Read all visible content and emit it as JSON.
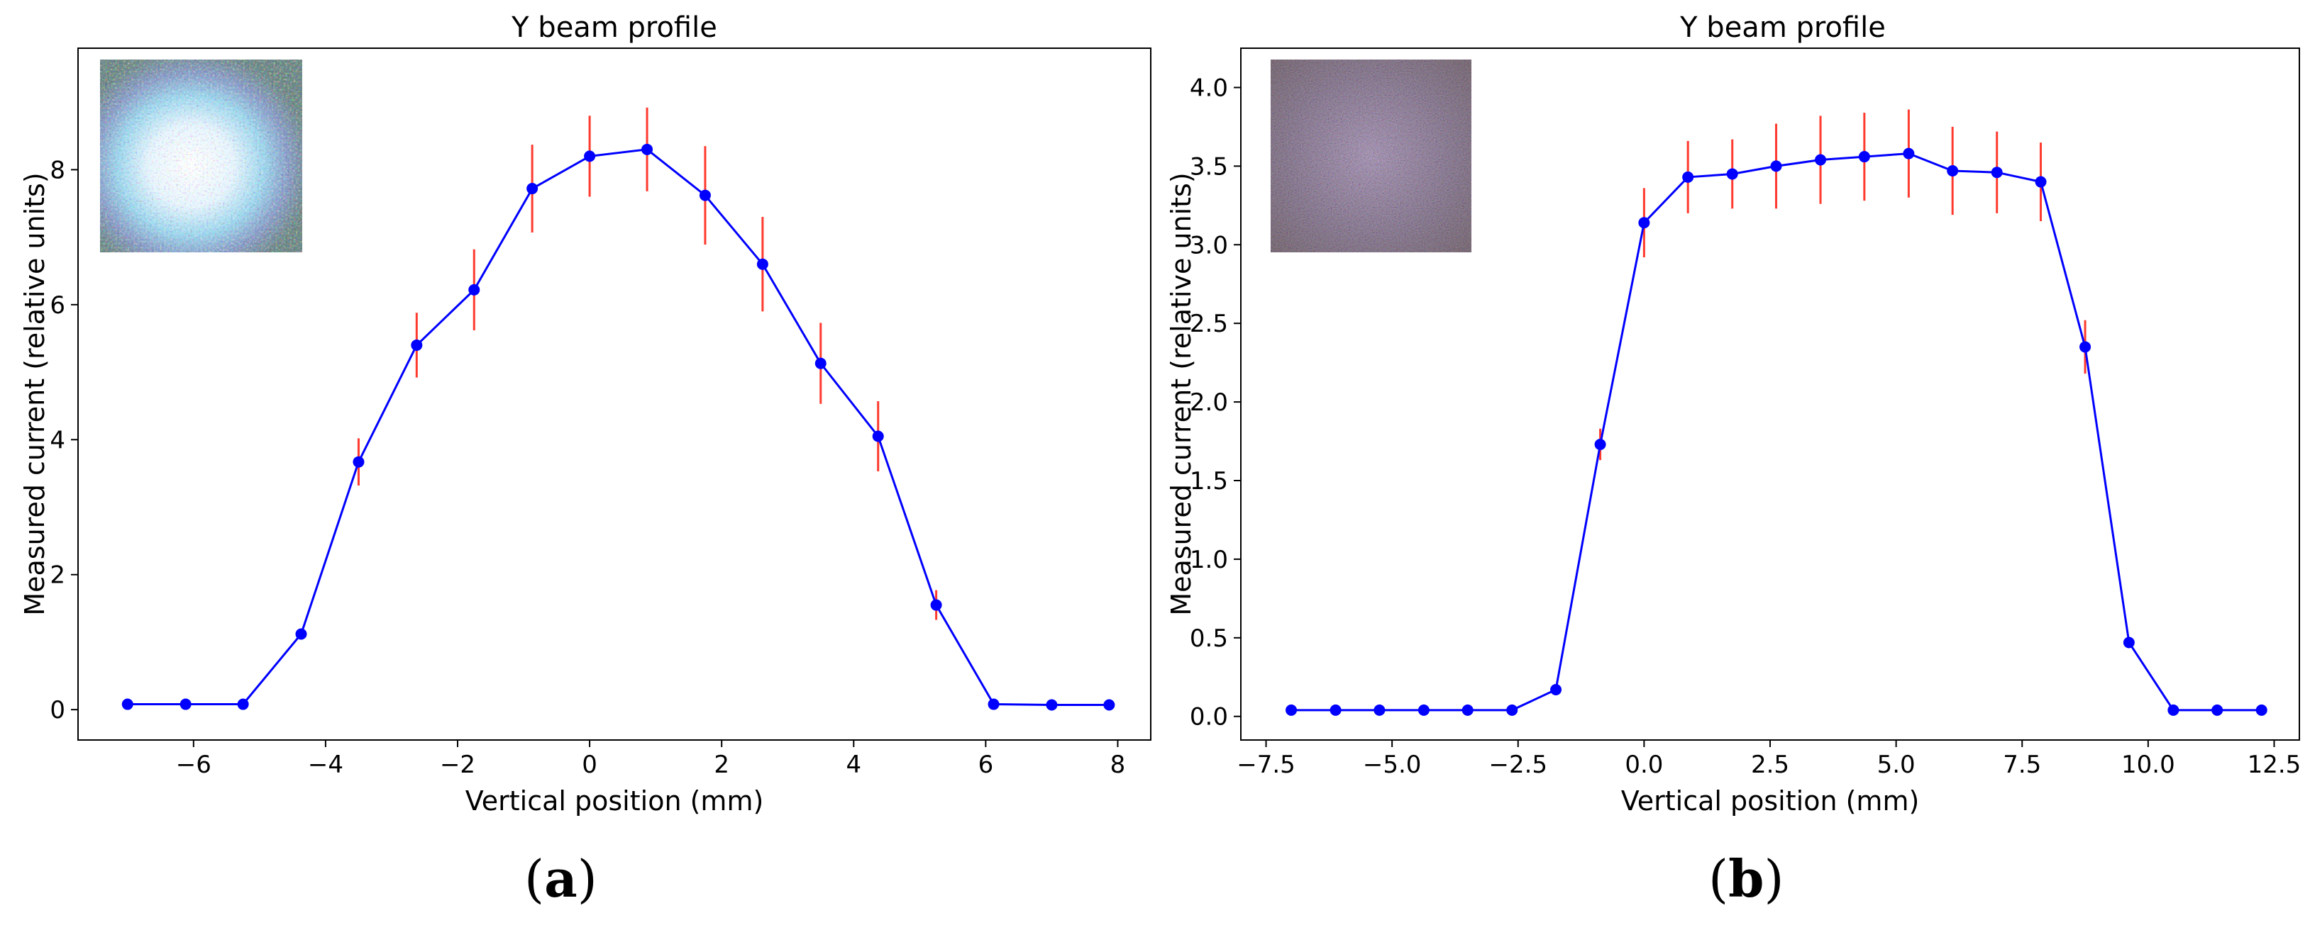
{
  "chart_data": [
    {
      "type": "line",
      "panel": "a",
      "caption": "a",
      "title": "Y beam profile",
      "xlabel": "Vertical position (mm)",
      "ylabel": "Measured current (relative units)",
      "xlim": [
        -7.75,
        8.5
      ],
      "ylim": [
        -0.45,
        9.8
      ],
      "xticks": [
        -6,
        -4,
        -2,
        0,
        2,
        4,
        6,
        8
      ],
      "xtick_labels": [
        "−6",
        "−4",
        "−2",
        "0",
        "2",
        "4",
        "6",
        "8"
      ],
      "yticks": [
        0,
        2,
        4,
        6,
        8
      ],
      "ytick_labels": [
        "0",
        "2",
        "4",
        "6",
        "8"
      ],
      "inset": "beam spot image (bright, centered)",
      "series": [
        {
          "name": "Y beam profile",
          "color": "#0000ff",
          "error_color": "#ff3a2e",
          "x": [
            -7.0,
            -6.12,
            -5.25,
            -4.37,
            -3.5,
            -2.62,
            -1.75,
            -0.87,
            0.0,
            0.87,
            1.75,
            2.62,
            3.5,
            4.37,
            5.25,
            6.12,
            7.0,
            7.87
          ],
          "y": [
            0.08,
            0.08,
            0.08,
            1.12,
            3.67,
            5.4,
            6.22,
            7.72,
            8.2,
            8.3,
            7.62,
            6.6,
            5.13,
            4.05,
            1.55,
            0.08,
            0.07,
            0.07
          ],
          "yerr": [
            0,
            0,
            0,
            0,
            0.35,
            0.48,
            0.6,
            0.65,
            0.6,
            0.62,
            0.73,
            0.7,
            0.6,
            0.52,
            0.22,
            0,
            0,
            0
          ]
        }
      ]
    },
    {
      "type": "line",
      "panel": "b",
      "caption": "b",
      "title": "Y beam profile",
      "xlabel": "Vertical position (mm)",
      "ylabel": "Measured current (relative units)",
      "xlim": [
        -8.0,
        13.0
      ],
      "ylim": [
        -0.15,
        4.25
      ],
      "xticks": [
        -7.5,
        -5.0,
        -2.5,
        0.0,
        2.5,
        5.0,
        7.5,
        10.0,
        12.5
      ],
      "xtick_labels": [
        "−7.5",
        "−5.0",
        "−2.5",
        "0.0",
        "2.5",
        "5.0",
        "7.5",
        "10.0",
        "12.5"
      ],
      "yticks": [
        0.0,
        0.5,
        1.0,
        1.5,
        2.0,
        2.5,
        3.0,
        3.5,
        4.0
      ],
      "ytick_labels": [
        "0.0",
        "0.5",
        "1.0",
        "1.5",
        "2.0",
        "2.5",
        "3.0",
        "3.5",
        "4.0"
      ],
      "inset": "beam spot image (diffuse, noisy)",
      "series": [
        {
          "name": "Y beam profile",
          "color": "#0000ff",
          "error_color": "#ff3a2e",
          "x": [
            -7.0,
            -6.12,
            -5.25,
            -4.37,
            -3.5,
            -2.62,
            -1.75,
            -0.87,
            0.0,
            0.87,
            1.75,
            2.62,
            3.5,
            4.37,
            5.25,
            6.12,
            7.0,
            7.87,
            8.75,
            9.62,
            10.5,
            11.37,
            12.25
          ],
          "y": [
            0.04,
            0.04,
            0.04,
            0.04,
            0.04,
            0.04,
            0.17,
            1.73,
            3.14,
            3.43,
            3.45,
            3.5,
            3.54,
            3.56,
            3.58,
            3.47,
            3.46,
            3.4,
            2.35,
            0.47,
            0.04,
            0.04,
            0.04
          ],
          "yerr": [
            0,
            0,
            0,
            0,
            0,
            0,
            0,
            0.1,
            0.22,
            0.23,
            0.22,
            0.27,
            0.28,
            0.28,
            0.28,
            0.28,
            0.26,
            0.25,
            0.17,
            0,
            0,
            0,
            0
          ]
        }
      ]
    }
  ]
}
